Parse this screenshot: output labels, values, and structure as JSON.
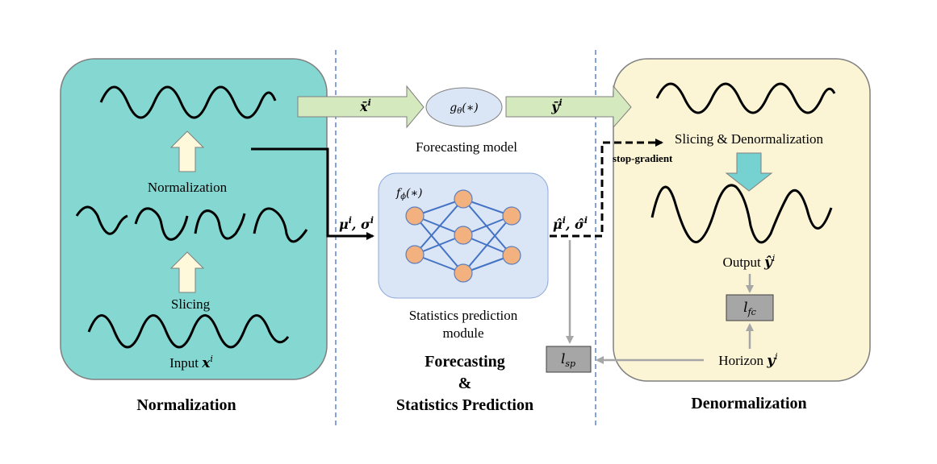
{
  "panels": {
    "normalization": {
      "title": "Normalization",
      "color": "#85d8d1",
      "input_label": "Input",
      "input_symbol": "x",
      "input_sup": "i",
      "slicing_label": "Slicing",
      "normalization_label": "Normalization"
    },
    "middle": {
      "title_line1": "Forecasting",
      "title_line2": "&",
      "title_line3": "Statistics Prediction",
      "forecasting_model": {
        "func": "g",
        "func_sub": "θ",
        "func_arg": "(∗)",
        "label": "Forecasting model",
        "input_symbol": "x̄",
        "input_sup": "i",
        "output_symbol": "ȳ",
        "output_sup": "i"
      },
      "stats_module": {
        "func": "f",
        "func_sub": "ϕ",
        "func_arg": "(∗)",
        "label_line1": "Statistics prediction",
        "label_line2": "module",
        "input_mu": "μ",
        "input_sigma": "σ",
        "input_sup": "i",
        "output_mu": "μ̂",
        "output_sigma": "σ̂",
        "output_sup": "i",
        "color": "#dae6f5"
      },
      "stop_gradient_label": "stop-gradient",
      "loss_sp": {
        "symbol": "l",
        "sub": "sp"
      }
    },
    "denormalization": {
      "title": "Denormalization",
      "color": "#fbf5d6",
      "slicing_label": "Slicing & Denormalization",
      "output_label": "Output",
      "output_symbol": "ŷ",
      "output_sup": "i",
      "horizon_label": "Horizon",
      "horizon_symbol": "y",
      "horizon_sup": "i",
      "loss_fc": {
        "symbol": "l",
        "sub": "fc"
      }
    }
  },
  "colors": {
    "arrow_green": "#d4e9bd",
    "arrow_beige": "#fff9dc",
    "arrow_teal": "#75d2d1",
    "node_orange": "#f3b17f",
    "edge_blue": "#4472c4",
    "loss_box": "#a6a6a6",
    "divider": "#4472c4"
  }
}
